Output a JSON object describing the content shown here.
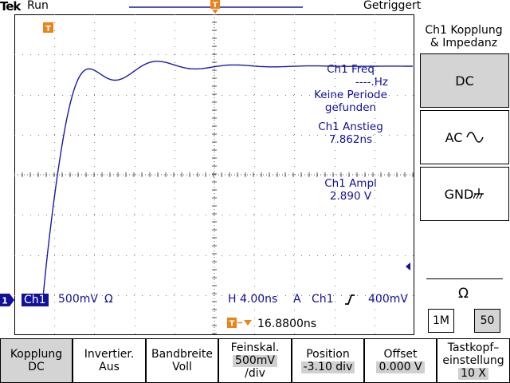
{
  "header": {
    "brand": "Tek",
    "run_state": "Run",
    "trigger_state": "Getriggert"
  },
  "screen": {
    "trigger_marker": "T",
    "measurements": {
      "freq_label": "Ch1 Freq",
      "freq_value": "----.Hz",
      "freq_note_1": "Keine Periode",
      "freq_note_2": "gefunden",
      "rise_label": "Ch1 Anstieg",
      "rise_value": "7.862ns",
      "ampl_label": "Ch1 Ampl",
      "ampl_value": "2.890 V"
    }
  },
  "status": {
    "channel_marker": "1",
    "channel": "Ch1",
    "volts_div": "500mV",
    "impedance_symbol": "Ω",
    "horizontal": "H 4.00ns",
    "trigger_mode": "A",
    "trigger_source": "Ch1",
    "trigger_level": "400mV",
    "trigger_pos_marker": "T",
    "trigger_offset": "16.8800ns"
  },
  "side_menu": {
    "title_1": "Ch1 Kopplung",
    "title_2": "& Impedanz",
    "dc": "DC",
    "ac": "AC",
    "gnd": "GND",
    "impedance_title": "Ω",
    "imp_1m": "1M",
    "imp_50": "50"
  },
  "bottom_menu": {
    "kopplung_label": "Kopplung",
    "kopplung_value": "DC",
    "invert_label": "Invertier.",
    "invert_value": "Aus",
    "bw_label": "Bandbreite",
    "bw_value": "Voll",
    "fine_label": "Feinskal.",
    "fine_value": "500mV",
    "fine_unit": "/div",
    "pos_label": "Position",
    "pos_value": "-3.10 div",
    "offset_label": "Offset",
    "offset_value": "0.000 V",
    "probe_label_1": "Tastkopf–",
    "probe_label_2": "einstellung",
    "probe_value": "10 X"
  },
  "colors": {
    "trace": "#1a1aa8",
    "marker": "#e8841a",
    "text_blue": "#10109a",
    "highlight": "#d0d0d0"
  }
}
